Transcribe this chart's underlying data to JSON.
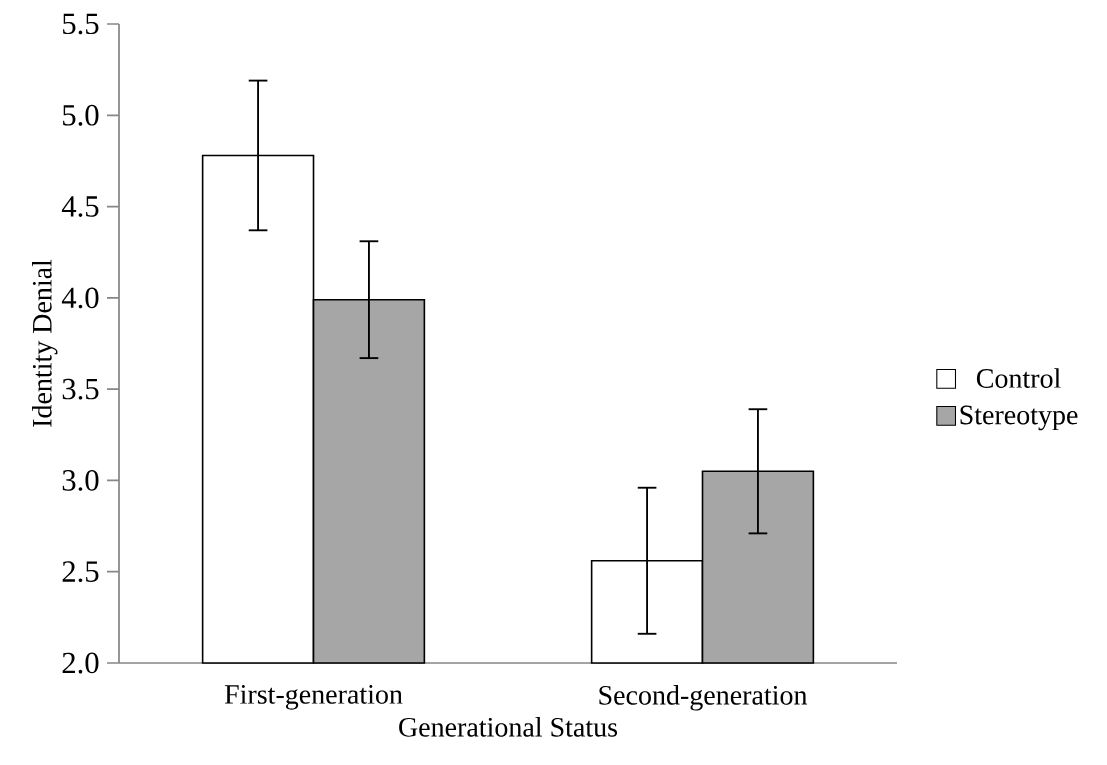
{
  "chart_data": {
    "type": "bar",
    "xlabel": "Generational Status",
    "ylabel": "Identity Denial",
    "categories": [
      "First-generation",
      "Second-generation"
    ],
    "series": [
      {
        "name": "Control",
        "color": "#ffffff",
        "values": [
          4.78,
          2.56
        ],
        "errors": [
          0.41,
          0.4
        ]
      },
      {
        "name": "Stereotype",
        "color": "#a6a6a6",
        "values": [
          3.99,
          3.05
        ],
        "errors": [
          0.32,
          0.34
        ]
      }
    ],
    "ylim": [
      2.0,
      5.5
    ],
    "yticks": [
      {
        "value": 2.0,
        "label": "2.0"
      },
      {
        "value": 2.5,
        "label": "2.5"
      },
      {
        "value": 3.0,
        "label": "3.0"
      },
      {
        "value": 3.5,
        "label": "3.5"
      },
      {
        "value": 4.0,
        "label": "4.0"
      },
      {
        "value": 4.5,
        "label": "4.5"
      },
      {
        "value": 5.0,
        "label": "5.0"
      },
      {
        "value": 5.5,
        "label": "5.5"
      }
    ],
    "legend": "right"
  }
}
